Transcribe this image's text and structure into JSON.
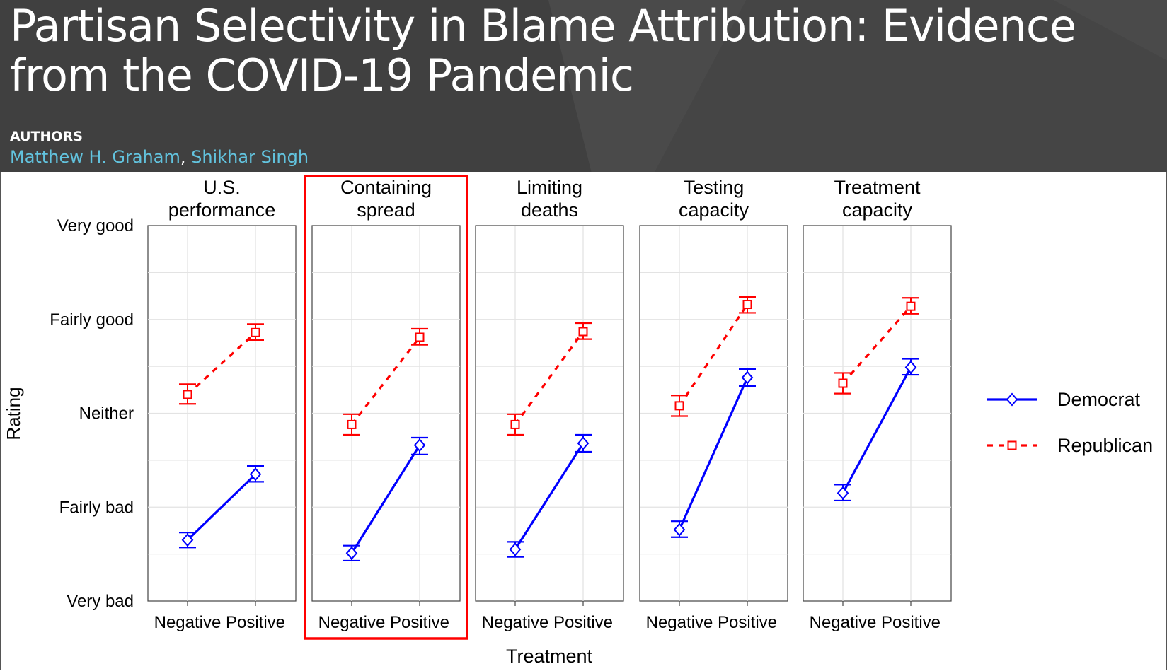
{
  "header": {
    "title": "Partisan Selectivity in Blame Attribution: Evidence from the COVID-19 Pandemic",
    "authors_label": "AUTHORS",
    "authors": [
      "Matthew H. Graham",
      "Shikhar Singh"
    ],
    "author_separator": ", ",
    "background_color": "#404040",
    "author_link_color": "#62c3de"
  },
  "chart_data": {
    "type": "line",
    "ylabel": "Rating",
    "xlabel": "Treatment",
    "categories": [
      "Negative",
      "Positive"
    ],
    "y_ticks": [
      {
        "value": 1,
        "label": "Very bad"
      },
      {
        "value": 2,
        "label": "Fairly bad"
      },
      {
        "value": 3,
        "label": "Neither"
      },
      {
        "value": 4,
        "label": "Fairly good"
      },
      {
        "value": 5,
        "label": "Very good"
      }
    ],
    "ylim": [
      1,
      5
    ],
    "grid": true,
    "legend_position": "right",
    "highlighted_panel": "Containing spread",
    "highlight_color": "#ff0000",
    "panels": [
      {
        "title_lines": [
          "U.S.",
          "performance"
        ],
        "series": [
          {
            "name": "Democrat",
            "values": [
              1.65,
              2.35
            ],
            "ci": [
              [
                1.57,
                1.73
              ],
              [
                2.27,
                2.44
              ]
            ]
          },
          {
            "name": "Republican",
            "values": [
              3.2,
              3.86
            ],
            "ci": [
              [
                3.1,
                3.31
              ],
              [
                3.78,
                3.95
              ]
            ]
          }
        ]
      },
      {
        "title_lines": [
          "Containing",
          "spread"
        ],
        "series": [
          {
            "name": "Democrat",
            "values": [
              1.51,
              2.66
            ],
            "ci": [
              [
                1.43,
                1.59
              ],
              [
                2.56,
                2.74
              ]
            ]
          },
          {
            "name": "Republican",
            "values": [
              2.88,
              3.81
            ],
            "ci": [
              [
                2.77,
                2.99
              ],
              [
                3.73,
                3.9
              ]
            ]
          }
        ]
      },
      {
        "title_lines": [
          "Limiting",
          "deaths"
        ],
        "series": [
          {
            "name": "Democrat",
            "values": [
              1.55,
              2.68
            ],
            "ci": [
              [
                1.47,
                1.63
              ],
              [
                2.59,
                2.77
              ]
            ]
          },
          {
            "name": "Republican",
            "values": [
              2.88,
              3.87
            ],
            "ci": [
              [
                2.77,
                2.99
              ],
              [
                3.79,
                3.96
              ]
            ]
          }
        ]
      },
      {
        "title_lines": [
          "Testing",
          "capacity"
        ],
        "series": [
          {
            "name": "Democrat",
            "values": [
              1.76,
              3.38
            ],
            "ci": [
              [
                1.68,
                1.85
              ],
              [
                3.29,
                3.47
              ]
            ]
          },
          {
            "name": "Republican",
            "values": [
              3.08,
              4.16
            ],
            "ci": [
              [
                2.97,
                3.19
              ],
              [
                4.07,
                4.24
              ]
            ]
          }
        ]
      },
      {
        "title_lines": [
          "Treatment",
          "capacity"
        ],
        "series": [
          {
            "name": "Democrat",
            "values": [
              2.15,
              3.49
            ],
            "ci": [
              [
                2.07,
                2.24
              ],
              [
                3.41,
                3.58
              ]
            ]
          },
          {
            "name": "Republican",
            "values": [
              3.32,
              4.14
            ],
            "ci": [
              [
                3.21,
                3.43
              ],
              [
                4.06,
                4.23
              ]
            ]
          }
        ]
      }
    ],
    "legend": [
      {
        "name": "Democrat",
        "color": "#0000ff",
        "linestyle": "solid",
        "marker": "diamond"
      },
      {
        "name": "Republican",
        "color": "#ff0000",
        "linestyle": "dashed",
        "marker": "square"
      }
    ]
  }
}
